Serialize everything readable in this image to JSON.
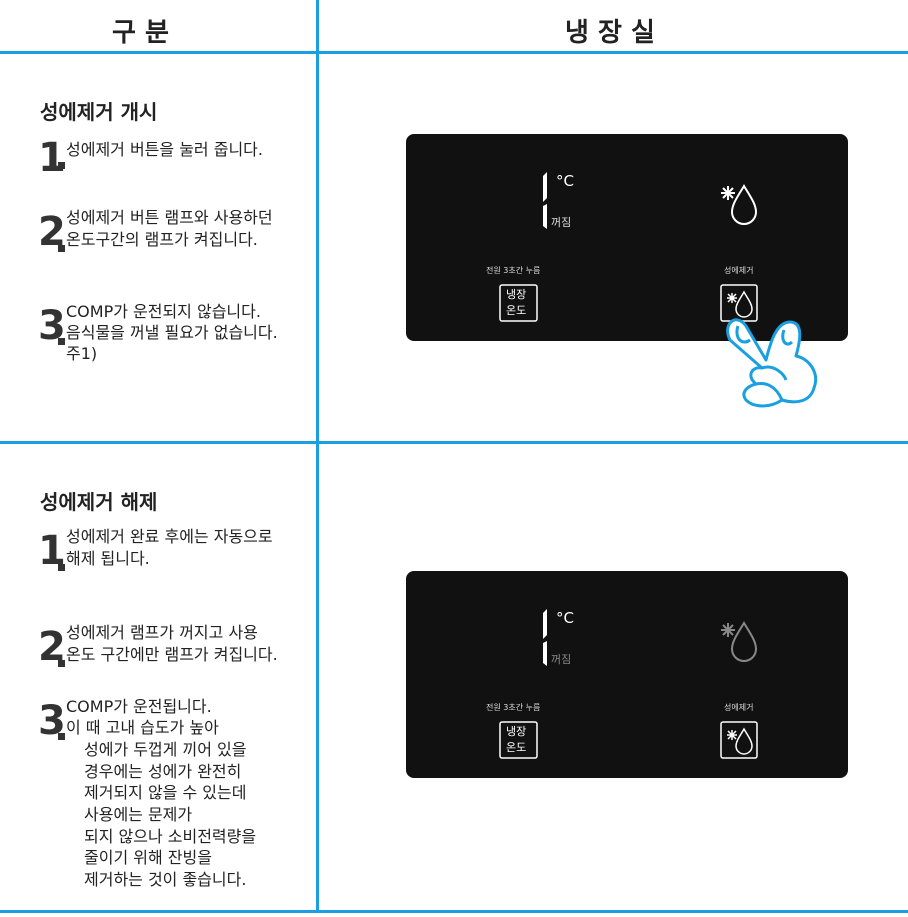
{
  "header": {
    "left": "구  분",
    "right": "냉 장 실"
  },
  "sections": [
    {
      "title": "성에제거 개시",
      "steps": [
        {
          "number": "1",
          "lines": [
            "성에제거 버튼을 눌러 줍니다."
          ]
        },
        {
          "number": "2",
          "lines": [
            "성에제거 버튼 램프와 사용하던",
            "온도구간의 램프가 켜집니다."
          ]
        },
        {
          "number": "3",
          "lines": [
            "COMP가 운전되지 않습니다.",
            "음식물을 꺼낼 필요가 없습니다.",
            "주1)"
          ]
        }
      ],
      "panel": {
        "unit": "°C",
        "off": "꺼짐",
        "hold_label": "전원 3초간 누름",
        "button": [
          "냉장",
          "온도"
        ],
        "defrost_label": "성에제거"
      }
    },
    {
      "title": "성에제거 해제",
      "steps": [
        {
          "number": "1",
          "lines": [
            "성에제거 완료 후에는 자동으로",
            "해제 됩니다."
          ]
        },
        {
          "number": "2",
          "lines": [
            "성에제거 램프가 꺼지고 사용",
            "온도 구간에만 램프가 켜집니다."
          ]
        },
        {
          "number": "3",
          "lines": [
            "COMP가 운전됩니다.",
            "이 때 고내 습도가 높아",
            "성에가 두껍게 끼어 있을",
            "경우에는 성에가 완전히",
            "제거되지 않을 수 있는데",
            "사용에는 문제가",
            "되지 않으나 소비전력량을",
            "줄이기 위해 잔빙을",
            "제거하는 것이 좋습니다."
          ]
        }
      ],
      "panel": {
        "unit": "°C",
        "off": "꺼짐",
        "hold_label": "전원 3초간 누름",
        "button": [
          "냉장",
          "온도"
        ],
        "defrost_label": "성에제거"
      }
    }
  ]
}
